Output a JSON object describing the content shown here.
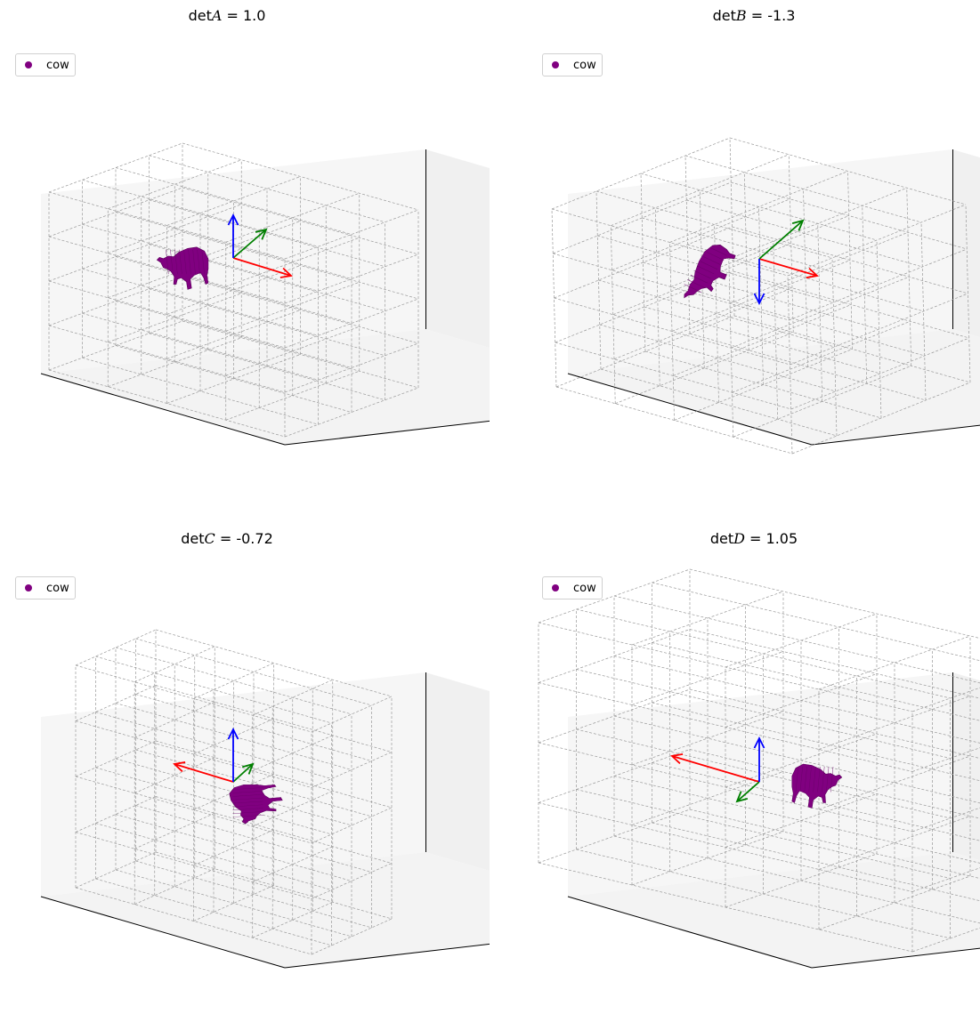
{
  "colors": {
    "cow": "#800080",
    "x_arrow": "#ff0000",
    "y_arrow": "#008000",
    "z_arrow": "#0000ff",
    "grid": "#9a9a9a",
    "pane_left": "#f6f6f6",
    "pane_back": "#f0f0f0",
    "pane_floor": "#f3f3f3"
  },
  "chart_data": [
    {
      "type": "scatter",
      "title_prefix": "det",
      "var": "A",
      "title_suffix": " = 1.0",
      "legend": "cow"
    },
    {
      "type": "scatter",
      "title_prefix": "det",
      "var": "B",
      "title_suffix": " = -1.3",
      "legend": "cow"
    },
    {
      "type": "scatter",
      "title_prefix": "det",
      "var": "C",
      "title_suffix": " = -0.72",
      "legend": "cow"
    },
    {
      "type": "scatter",
      "title_prefix": "det",
      "var": "D",
      "title_suffix": " = 1.05",
      "legend": "cow"
    }
  ]
}
